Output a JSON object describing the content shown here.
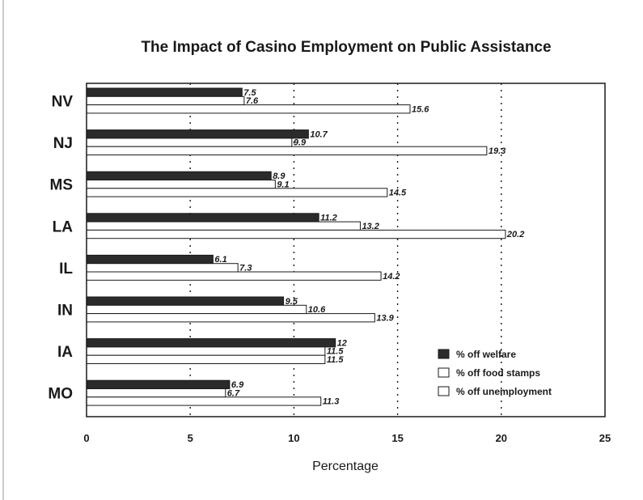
{
  "chart_data": {
    "type": "bar",
    "orientation": "horizontal",
    "title": "The Impact of Casino Employment on Public Assistance",
    "xlabel": "Percentage",
    "ylabel": "",
    "xlim": [
      0,
      25
    ],
    "xticks": [
      "0",
      "5",
      "10",
      "15",
      "20",
      "25"
    ],
    "grid": "vertical dotted",
    "legend_position": "bottom-right",
    "categories": [
      "NV",
      "NJ",
      "MS",
      "LA",
      "IL",
      "IN",
      "IA",
      "MO"
    ],
    "series": [
      {
        "name": "% off welfare",
        "color": "#2b2b2b",
        "values": [
          7.5,
          10.7,
          8.9,
          11.2,
          6.1,
          9.5,
          12,
          6.9
        ],
        "labels": [
          "7.5",
          "10.7",
          "8.9",
          "11.2",
          "6.1",
          "9.5",
          "12",
          "6.9"
        ]
      },
      {
        "name": "% off food stamps",
        "color": "#ffffff",
        "values": [
          7.6,
          9.9,
          9.1,
          13.2,
          7.3,
          10.6,
          11.5,
          6.7
        ],
        "labels": [
          "7.6",
          "9.9",
          "9.1",
          "13.2",
          "7.3",
          "10.6",
          "11.5",
          "6.7"
        ]
      },
      {
        "name": "% off unemployment",
        "color": "#ffffff",
        "values": [
          15.6,
          19.3,
          14.5,
          20.2,
          14.2,
          13.9,
          11.5,
          11.3
        ],
        "labels": [
          "15.6",
          "19.3",
          "14.5",
          "20.2",
          "14.2",
          "13.9",
          "11.5",
          "11.3"
        ]
      }
    ]
  }
}
